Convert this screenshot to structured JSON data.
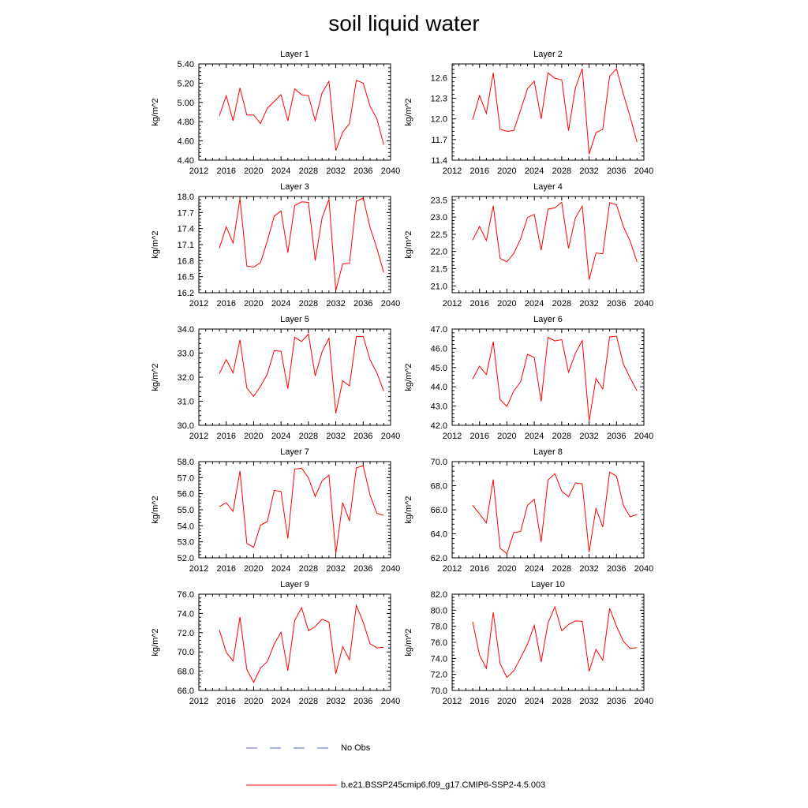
{
  "title": "soil liquid water",
  "legend": {
    "items": [
      {
        "label": "No Obs",
        "color": "#5566cc",
        "style": "dashed"
      },
      {
        "label": "b.e21.BSSP245cmip6.f09_g17.CMIP6-SSP2-4.5.003",
        "color": "#ff0000",
        "style": "solid"
      }
    ]
  },
  "chart_data": [
    {
      "type": "line",
      "title": "Layer 1",
      "ylabel": "kg/m^2",
      "xlim": [
        2012,
        2040
      ],
      "ylim": [
        4.4,
        5.4
      ],
      "xticks": [
        "2012",
        "2016",
        "2020",
        "2024",
        "2028",
        "2032",
        "2036",
        "2040"
      ],
      "yticks": [
        "4.40",
        "4.60",
        "4.80",
        "5.00",
        "5.20",
        "5.40"
      ],
      "x": [
        2015,
        2016,
        2017,
        2018,
        2019,
        2020,
        2021,
        2022,
        2023,
        2024,
        2025,
        2026,
        2027,
        2028,
        2029,
        2030,
        2031,
        2032,
        2033,
        2034,
        2035,
        2036,
        2037,
        2038,
        2039
      ],
      "series": [
        {
          "values": [
            4.86,
            5.07,
            4.81,
            5.15,
            4.87,
            4.87,
            4.78,
            4.94,
            5.01,
            5.08,
            4.81,
            5.14,
            5.08,
            5.07,
            4.81,
            5.1,
            5.22,
            4.5,
            4.69,
            4.78,
            5.23,
            5.2,
            4.96,
            4.83,
            4.56
          ]
        }
      ]
    },
    {
      "type": "line",
      "title": "Layer 2",
      "ylabel": "kg/m^2",
      "xlim": [
        2012,
        2040
      ],
      "ylim": [
        11.4,
        12.8
      ],
      "xticks": [
        "2012",
        "2016",
        "2020",
        "2024",
        "2028",
        "2032",
        "2036",
        "2040"
      ],
      "yticks": [
        "11.4",
        "11.7",
        "12.0",
        "12.3",
        "12.6"
      ],
      "x": [
        2015,
        2016,
        2017,
        2018,
        2019,
        2020,
        2021,
        2022,
        2023,
        2024,
        2025,
        2026,
        2027,
        2028,
        2029,
        2030,
        2031,
        2032,
        2033,
        2034,
        2035,
        2036,
        2037,
        2038,
        2039
      ],
      "series": [
        {
          "values": [
            11.99,
            12.34,
            12.08,
            12.67,
            11.85,
            11.82,
            11.83,
            12.13,
            12.44,
            12.55,
            12.0,
            12.67,
            12.59,
            12.57,
            11.83,
            12.45,
            12.73,
            11.49,
            11.8,
            11.85,
            12.62,
            12.73,
            12.36,
            12.03,
            11.66
          ]
        }
      ]
    },
    {
      "type": "line",
      "title": "Layer 3",
      "ylabel": "kg/m^2",
      "xlim": [
        2012,
        2040
      ],
      "ylim": [
        16.2,
        18.0
      ],
      "xticks": [
        "2012",
        "2016",
        "2020",
        "2024",
        "2028",
        "2032",
        "2036",
        "2040"
      ],
      "yticks": [
        "16.2",
        "16.5",
        "16.8",
        "17.1",
        "17.4",
        "17.7",
        "18.0"
      ],
      "x": [
        2015,
        2016,
        2017,
        2018,
        2019,
        2020,
        2021,
        2022,
        2023,
        2024,
        2025,
        2026,
        2027,
        2028,
        2029,
        2030,
        2031,
        2032,
        2033,
        2034,
        2035,
        2036,
        2037,
        2038,
        2039
      ],
      "series": [
        {
          "values": [
            17.03,
            17.43,
            17.13,
            17.96,
            16.7,
            16.68,
            16.76,
            17.17,
            17.63,
            17.73,
            16.95,
            17.83,
            17.9,
            17.89,
            16.8,
            17.6,
            17.95,
            16.24,
            16.74,
            16.75,
            17.91,
            17.97,
            17.42,
            17.03,
            16.58
          ]
        }
      ]
    },
    {
      "type": "line",
      "title": "Layer 4",
      "ylabel": "kg/m^2",
      "xlim": [
        2012,
        2040
      ],
      "ylim": [
        20.8,
        23.6
      ],
      "xticks": [
        "2012",
        "2016",
        "2020",
        "2024",
        "2028",
        "2032",
        "2036",
        "2040"
      ],
      "yticks": [
        "21.0",
        "21.5",
        "22.0",
        "22.5",
        "23.0",
        "23.5"
      ],
      "x": [
        2015,
        2016,
        2017,
        2018,
        2019,
        2020,
        2021,
        2022,
        2023,
        2024,
        2025,
        2026,
        2027,
        2028,
        2029,
        2030,
        2031,
        2032,
        2033,
        2034,
        2035,
        2036,
        2037,
        2038,
        2039
      ],
      "series": [
        {
          "values": [
            22.33,
            22.73,
            22.32,
            23.33,
            21.8,
            21.7,
            21.94,
            22.37,
            22.99,
            23.08,
            22.04,
            23.23,
            23.27,
            23.43,
            22.09,
            22.98,
            23.32,
            21.18,
            21.96,
            21.93,
            23.42,
            23.36,
            22.73,
            22.3,
            21.7
          ]
        }
      ]
    },
    {
      "type": "line",
      "title": "Layer 5",
      "ylabel": "kg/m^2",
      "xlim": [
        2012,
        2040
      ],
      "ylim": [
        30.0,
        34.0
      ],
      "xticks": [
        "2012",
        "2016",
        "2020",
        "2024",
        "2028",
        "2032",
        "2036",
        "2040"
      ],
      "yticks": [
        "30.0",
        "31.0",
        "32.0",
        "33.0",
        "34.0"
      ],
      "x": [
        2015,
        2016,
        2017,
        2018,
        2019,
        2020,
        2021,
        2022,
        2023,
        2024,
        2025,
        2026,
        2027,
        2028,
        2029,
        2030,
        2031,
        2032,
        2033,
        2034,
        2035,
        2036,
        2037,
        2038,
        2039
      ],
      "series": [
        {
          "values": [
            32.15,
            32.73,
            32.18,
            33.55,
            31.55,
            31.2,
            31.62,
            32.13,
            33.1,
            33.08,
            31.52,
            33.66,
            33.48,
            33.79,
            32.05,
            33.06,
            33.62,
            30.5,
            31.85,
            31.64,
            33.69,
            33.69,
            32.72,
            32.18,
            31.42
          ]
        }
      ]
    },
    {
      "type": "line",
      "title": "Layer 6",
      "ylabel": "kg/m^2",
      "xlim": [
        2012,
        2040
      ],
      "ylim": [
        42.0,
        47.0
      ],
      "xticks": [
        "2012",
        "2016",
        "2020",
        "2024",
        "2028",
        "2032",
        "2036",
        "2040"
      ],
      "yticks": [
        "42.0",
        "43.0",
        "44.0",
        "45.0",
        "46.0",
        "47.0"
      ],
      "x": [
        2015,
        2016,
        2017,
        2018,
        2019,
        2020,
        2021,
        2022,
        2023,
        2024,
        2025,
        2026,
        2027,
        2028,
        2029,
        2030,
        2031,
        2032,
        2033,
        2034,
        2035,
        2036,
        2037,
        2038,
        2039
      ],
      "series": [
        {
          "values": [
            44.4,
            45.07,
            44.63,
            46.34,
            43.34,
            42.98,
            43.78,
            44.26,
            45.69,
            45.52,
            43.24,
            46.57,
            46.38,
            46.45,
            44.76,
            45.74,
            46.4,
            42.22,
            44.43,
            43.89,
            46.59,
            46.63,
            45.18,
            44.46,
            43.79
          ]
        }
      ]
    },
    {
      "type": "line",
      "title": "Layer 7",
      "ylabel": "kg/m^2",
      "xlim": [
        2012,
        2040
      ],
      "ylim": [
        52.0,
        58.0
      ],
      "xticks": [
        "2012",
        "2016",
        "2020",
        "2024",
        "2028",
        "2032",
        "2036",
        "2040"
      ],
      "yticks": [
        "52.0",
        "53.0",
        "54.0",
        "55.0",
        "56.0",
        "57.0",
        "58.0"
      ],
      "x": [
        2015,
        2016,
        2017,
        2018,
        2019,
        2020,
        2021,
        2022,
        2023,
        2024,
        2025,
        2026,
        2027,
        2028,
        2029,
        2030,
        2031,
        2032,
        2033,
        2034,
        2035,
        2036,
        2037,
        2038,
        2039
      ],
      "series": [
        {
          "values": [
            55.19,
            55.44,
            54.9,
            57.42,
            52.9,
            52.66,
            54.04,
            54.26,
            56.21,
            56.14,
            53.21,
            57.54,
            57.59,
            56.99,
            55.83,
            56.8,
            57.16,
            52.26,
            55.44,
            54.3,
            57.61,
            57.74,
            55.91,
            54.78,
            54.64
          ]
        }
      ]
    },
    {
      "type": "line",
      "title": "Layer 8",
      "ylabel": "kg/m^2",
      "xlim": [
        2012,
        2040
      ],
      "ylim": [
        62.0,
        70.0
      ],
      "xticks": [
        "2012",
        "2016",
        "2020",
        "2024",
        "2028",
        "2032",
        "2036",
        "2040"
      ],
      "yticks": [
        "62.0",
        "64.0",
        "66.0",
        "68.0",
        "70.0"
      ],
      "x": [
        2015,
        2016,
        2017,
        2018,
        2019,
        2020,
        2021,
        2022,
        2023,
        2024,
        2025,
        2026,
        2027,
        2028,
        2029,
        2030,
        2031,
        2032,
        2033,
        2034,
        2035,
        2036,
        2037,
        2038,
        2039
      ],
      "series": [
        {
          "values": [
            66.36,
            65.65,
            64.91,
            68.51,
            62.8,
            62.34,
            64.1,
            64.19,
            66.37,
            66.87,
            63.32,
            68.48,
            69.0,
            67.55,
            67.08,
            68.23,
            68.16,
            62.49,
            66.11,
            64.57,
            69.13,
            68.79,
            66.37,
            65.41,
            65.6
          ]
        }
      ]
    },
    {
      "type": "line",
      "title": "Layer 9",
      "ylabel": "kg/m^2",
      "xlim": [
        2012,
        2040
      ],
      "ylim": [
        66.0,
        76.0
      ],
      "xticks": [
        "2012",
        "2016",
        "2020",
        "2024",
        "2028",
        "2032",
        "2036",
        "2040"
      ],
      "yticks": [
        "66.0",
        "68.0",
        "70.0",
        "72.0",
        "74.0",
        "76.0"
      ],
      "x": [
        2015,
        2016,
        2017,
        2018,
        2019,
        2020,
        2021,
        2022,
        2023,
        2024,
        2025,
        2026,
        2027,
        2028,
        2029,
        2030,
        2031,
        2032,
        2033,
        2034,
        2035,
        2036,
        2037,
        2038,
        2039
      ],
      "series": [
        {
          "values": [
            72.29,
            69.97,
            69.06,
            73.62,
            68.19,
            66.83,
            68.34,
            68.99,
            70.8,
            72.05,
            68.06,
            73.26,
            74.6,
            72.2,
            72.64,
            73.4,
            73.09,
            67.73,
            70.55,
            69.18,
            74.84,
            73.07,
            70.85,
            70.42,
            70.49
          ]
        }
      ]
    },
    {
      "type": "line",
      "title": "Layer 10",
      "ylabel": "kg/m^2",
      "xlim": [
        2012,
        2040
      ],
      "ylim": [
        70.0,
        82.0
      ],
      "xticks": [
        "2012",
        "2016",
        "2020",
        "2024",
        "2028",
        "2032",
        "2036",
        "2040"
      ],
      "yticks": [
        "70.0",
        "72.0",
        "74.0",
        "76.0",
        "78.0",
        "80.0",
        "82.0"
      ],
      "x": [
        2015,
        2016,
        2017,
        2018,
        2019,
        2020,
        2021,
        2022,
        2023,
        2024,
        2025,
        2026,
        2027,
        2028,
        2029,
        2030,
        2031,
        2032,
        2033,
        2034,
        2035,
        2036,
        2037,
        2038,
        2039
      ],
      "series": [
        {
          "values": [
            78.58,
            74.42,
            72.74,
            79.75,
            73.35,
            71.63,
            72.44,
            74.06,
            75.76,
            78.11,
            73.54,
            78.4,
            80.42,
            77.43,
            78.21,
            78.67,
            78.62,
            72.38,
            75.11,
            73.77,
            80.23,
            78.02,
            76.13,
            75.24,
            75.34
          ]
        }
      ]
    }
  ]
}
